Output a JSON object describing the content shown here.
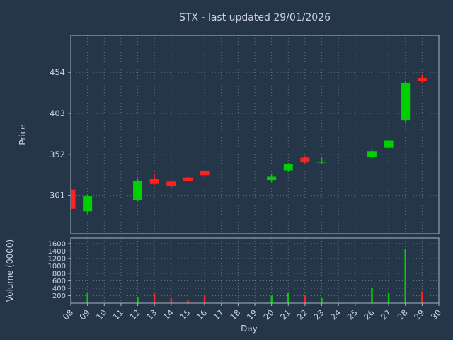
{
  "chart_data": {
    "type": "candlestick",
    "title": "STX - last updated 29/01/2026",
    "xlabel": "Day",
    "ylabel_price": "Price",
    "ylabel_volume": "Volume (0000)",
    "x_ticks": [
      "08",
      "09",
      "10",
      "11",
      "12",
      "13",
      "14",
      "15",
      "16",
      "17",
      "18",
      "19",
      "20",
      "21",
      "22",
      "23",
      "24",
      "25",
      "26",
      "27",
      "28",
      "29",
      "30"
    ],
    "price_ticks": [
      301,
      352,
      403,
      454
    ],
    "volume_ticks": [
      200,
      400,
      600,
      800,
      1000,
      1200,
      1400,
      1600
    ],
    "x_range": [
      8,
      30
    ],
    "price_range": [
      253,
      500
    ],
    "volume_range": [
      0,
      1750
    ],
    "grid": true,
    "legend": "none",
    "colors": {
      "up": "#00cf00",
      "down": "#ff2020",
      "background": "#253649",
      "grid": "#9aa6b5",
      "spine": "#a9b4c2",
      "text": "#c9d2e0",
      "title": "#ffe100"
    },
    "candles": [
      {
        "day": 8,
        "open": 308,
        "high": 310,
        "low": 280,
        "close": 284,
        "volume": 110
      },
      {
        "day": 9,
        "open": 281,
        "high": 302,
        "low": 278,
        "close": 300,
        "volume": 260
      },
      {
        "day": 12,
        "open": 295,
        "high": 322,
        "low": 293,
        "close": 319,
        "volume": 160
      },
      {
        "day": 13,
        "open": 321,
        "high": 328,
        "low": 314,
        "close": 315,
        "volume": 260
      },
      {
        "day": 14,
        "open": 318,
        "high": 320,
        "low": 310,
        "close": 312,
        "volume": 130
      },
      {
        "day": 15,
        "open": 323,
        "high": 325,
        "low": 318,
        "close": 319,
        "volume": 90
      },
      {
        "day": 16,
        "open": 331,
        "high": 332,
        "low": 324,
        "close": 326,
        "volume": 210
      },
      {
        "day": 20,
        "open": 320,
        "high": 327,
        "low": 317,
        "close": 324,
        "volume": 200
      },
      {
        "day": 21,
        "open": 332,
        "high": 341,
        "low": 330,
        "close": 340,
        "volume": 280
      },
      {
        "day": 22,
        "open": 348,
        "high": 350,
        "low": 341,
        "close": 342,
        "volume": 230
      },
      {
        "day": 23,
        "open": 342,
        "high": 349,
        "low": 340,
        "close": 343,
        "volume": 130
      },
      {
        "day": 26,
        "open": 349,
        "high": 359,
        "low": 346,
        "close": 356,
        "volume": 420
      },
      {
        "day": 27,
        "open": 360,
        "high": 370,
        "low": 358,
        "close": 369,
        "volume": 260
      },
      {
        "day": 28,
        "open": 394,
        "high": 443,
        "low": 392,
        "close": 441,
        "volume": 1450
      },
      {
        "day": 29,
        "open": 447,
        "high": 451,
        "low": 441,
        "close": 443,
        "volume": 310
      }
    ]
  }
}
